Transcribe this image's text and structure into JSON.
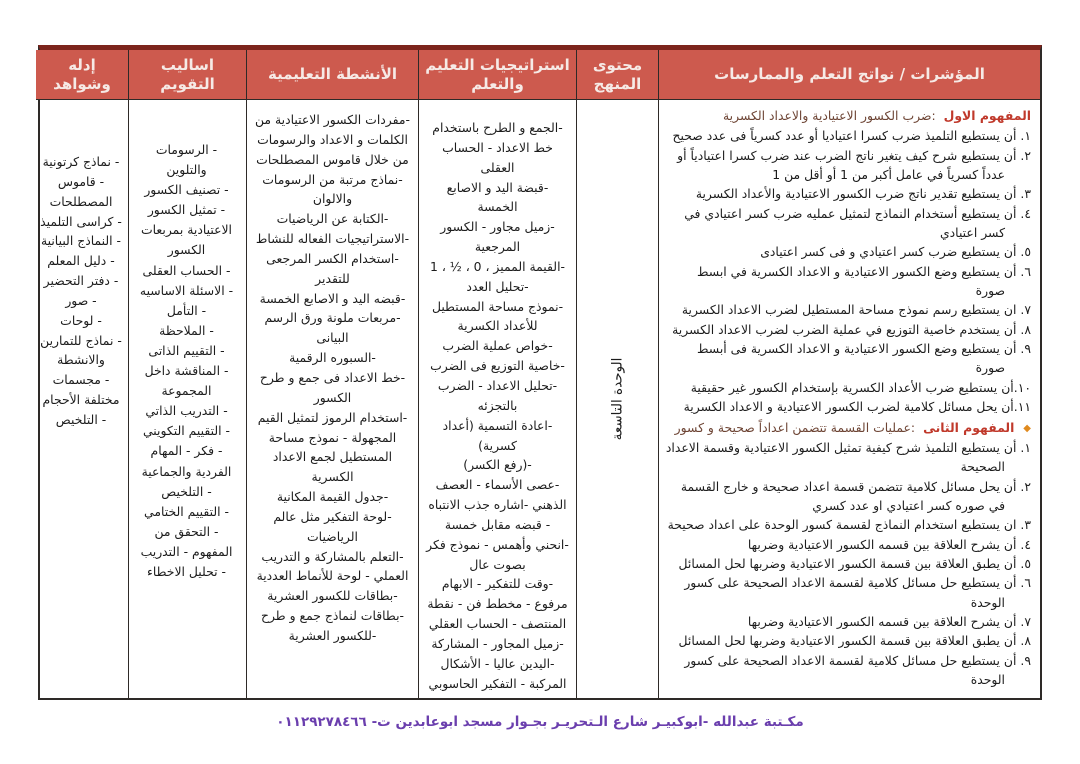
{
  "header": {
    "col_indicators": "المؤشرات / نواتج التعلم والممارسات",
    "col_content": "محتوى المنهج",
    "col_strategies": "استراتيجيات التعليم والتعلم",
    "col_activities": "الأنشطة التعليمية",
    "col_evaluation": "اساليب التقويم",
    "col_evidence": "إدله وشواهد"
  },
  "indicators": {
    "concept1_title": "المفهوم الاول",
    "concept1_desc": ":ضرب الكسور الاعتيادية والاعداد الكسرية",
    "concept1_items": [
      "١. أن يستطيع التلميذ ضرب كسرا اعتياديا أو عدد كسرياً فى عدد صحيح",
      "٢. أن يستطيع شرح كيف يتغير ناتج الضرب عند ضرب كسرا اعتيادياً أو عدداً كسرياً في عامل أكبر من 1 أو أقل من 1",
      "٣. أن يستطيع تقدير ناتج ضرب الكسور الاعتيادية والأعداد الكسرية",
      "٤. أن يستطيع أستخدام النماذج لتمثيل عمليه ضرب كسر اعتيادي في كسر اعتيادي",
      "٥. أن يستطيع ضرب كسر اعتيادي و فى كسر اعتيادى",
      "٦. أن يستطيع وضع الكسور الاعتيادية و الاعداد الكسرية في ابسط صورة",
      "٧. ان يستطيع رسم نموذج مساحة المستطيل لضرب الاعداد الكسرية",
      "٨. أن يستخدم خاصية التوزيع في عملية الضرب لضرب الاعداد الكسرية",
      "٩. أن يستطيع وضع الكسور الاعتيادية و الاعداد الكسرية فى أبسط صورة",
      "١٠.أن يستطيع ضرب الأعداد الكسرية بإستخدام الكسور غير حقيقية",
      "١١.أن يحل مسائل كلامية لضرب الكسور الاعتيادية و الاعداد الكسرية"
    ],
    "concept2_bullet": "◆",
    "concept2_title": "المفهوم الثانى",
    "concept2_desc": ":عمليات القسمة تتضمن اعداداً صحيحة و كسور",
    "concept2_items": [
      "١. أن يستطيع التلميذ شرح كيفية تمثيل الكسور الاعتيادية وقسمة الاعداد الصحيحة",
      "٢. أن يحل مسائل كلامية تتضمن قسمة اعداد صحيحة و خارج القسمة في صوره كسر اعتيادي او عدد كسري",
      "٣. ان يستطيع استخدام النماذج لقسمة كسور الوحدة على اعداد صحيحة",
      "٤. أن يشرح العلاقة بين قسمه الكسور الاعتيادية وضربها",
      "٥. أن يطبق العلاقة بين قسمة الكسور الاعتيادية وضربها لحل المسائل",
      "٦. أن يستطيع حل مسائل كلامية لقسمة الاعداد الصحيحة على كسور الوحدة",
      "٧. أن يشرح العلاقة بين قسمه الكسور الاعتيادية وضربها",
      "٨. أن يطبق العلاقة بين قسمة الكسور الاعتيادية وضربها لحل المسائل",
      "٩. أن يستطيع حل مسائل كلامية لقسمة الاعداد الصحيحة على كسور الوحدة"
    ]
  },
  "content_unit": "الوحدة التاسعة",
  "strategies_items": [
    "-الجمع و الطرح باستخدام خط الاعداد - الحساب العقلى",
    "-قبضة اليد و الاصابع الخمسة",
    "-زميل مجاور - الكسور المرجعية",
    "-القيمة المميز ، 0 ، ½ ، 1",
    "-تحليل العدد",
    "-نموذج مساحة المستطيل للأعداد الكسرية",
    "-خواص عملية الضرب",
    "-خاصية التوزيع فى الضرب",
    "-تحليل الاعداد - الضرب بالتجزئه",
    "-اعادة التسمية (أعداد كسرية)",
    "-(رفع الكسر)",
    "-عصى الأسماء - العصف الذهني -اشاره جذب الانتباه",
    "- قبضه مقابل خمسة",
    "-انحني وأهمس - نموذج فكر بصوت عال",
    "-وقت للتفكير - الابهام مرفوع - مخطط فن - نقطة المنتصف - الحساب العقلي",
    "-زميل المجاور - المشاركة",
    "-اليدين عاليا - الأشكال المركبة - التفكير الحاسوبي"
  ],
  "activities_items": [
    "-مفردات الكسور الاعتيادية من الكلمات و الاعداد والرسومات من خلال قاموس المصطلحات",
    "-نماذج مرتبة من الرسومات والالوان",
    "-الكتابة عن الرياضيات",
    "-الاستراتيجيات الفعاله للنشاط",
    "-استخدام الكسر المرجعى للتقدير",
    "-قبضه اليد و الاصابع الخمسة",
    "-مربعات ملونة ورق الرسم البيانى",
    "-السبوره الرقمية",
    "-خط الاعداد فى جمع و طرح الكسور",
    "-استخدام الرموز لتمثيل القيم المجهولة - نموذج مساحة المستطيل لجمع الاعداد الكسرية",
    "-جدول القيمة المكانية",
    "-لوحة التفكير مثل عالم الرياضيات",
    "-التعلم بالمشاركة و التدريب العملي - لوحة للأنماط العددية",
    "-بطاقات للكسور العشرية",
    "-بطاقات لنماذج جمع و طرح",
    "-للكسور العشرية"
  ],
  "evaluation_items": [
    "- الرسومات والتلوين",
    "- تصنيف الكسور",
    "- تمثيل الكسور الاعتيادية بمربعات الكسور",
    "- الحساب العقلى",
    "- الاسئلة الاساسيه",
    "- التأمل",
    "- الملاحظة",
    "- التقييم الذاتى",
    "- المناقشة داخل المجموعة",
    "- التدريب الذاتي",
    "- التقييم التكويني",
    "- فكر - المهام الفردية والجماعية",
    "- التلخيص",
    "- التقييم الختامي",
    "- التحقق من المفهوم - التدريب",
    "- تحليل الاخطاء"
  ],
  "evidence_items": [
    "- نماذج كرتونية",
    "- قاموس المصطلحات",
    "- كراسى التلميذ",
    "- النماذج البيانية",
    "- دليل المعلم",
    "- دفتر التحضير",
    "- صور",
    "- لوحات",
    "- نماذج للتمارين والانشطة",
    "- مجسمات مختلفة الأحجام",
    "- التلخيص"
  ],
  "footer": {
    "text": "مكـتبة عبدالله -ابوكبيـر شارع الـتحريـر بجـوار مسجد ابوعابدين ت- ٠١١٢٩٢٧٨٤٦٦"
  },
  "colors": {
    "header_bg": "#cd5a4e",
    "header_text": "#f6eae6",
    "header_top_border": "#7c241c",
    "concept_title_red": "#c0392b",
    "bullet_orange": "#e08a1e",
    "footer_purple": "#6b3fae",
    "table_border": "#2e2a28"
  }
}
